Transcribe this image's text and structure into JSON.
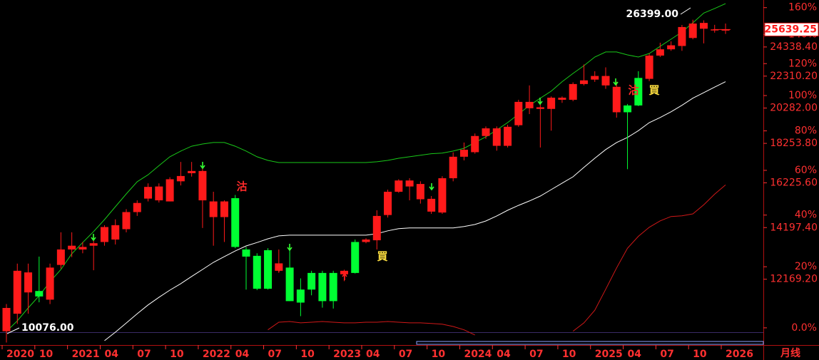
{
  "chart_data": {
    "type": "candlestick",
    "period_label": "月线",
    "categories": [
      "2020",
      null,
      null,
      "10",
      null,
      null,
      "2021",
      null,
      null,
      "04",
      null,
      null,
      "07",
      null,
      null,
      "10",
      null,
      null,
      "2022",
      null,
      null,
      "04",
      null,
      null,
      "07",
      null,
      null,
      "10",
      null,
      null,
      "2023",
      null,
      null,
      "04",
      null,
      null,
      "07",
      null,
      null,
      "10",
      null,
      null,
      "2024",
      null,
      null,
      "04",
      null,
      null,
      "07",
      null,
      null,
      "10",
      null,
      null,
      "2025",
      null,
      null,
      "04",
      null,
      null,
      "07",
      null,
      null,
      "10",
      null,
      null,
      "2026"
    ],
    "open": [
      10420,
      10980,
      11700,
      11750,
      11450,
      12700,
      13300,
      13300,
      13450,
      13600,
      13700,
      14130,
      14870,
      15480,
      15400,
      15350,
      16300,
      16700,
      15400,
      14650,
      14650,
      15500,
      13300,
      13050,
      13270,
      12480,
      12600,
      11800,
      12400,
      12400,
      12400,
      12350,
      13600,
      13600,
      13670,
      14740,
      15800,
      16050,
      15450,
      14890,
      14850,
      16450,
      17540,
      17780,
      18660,
      18120,
      18120,
      19270,
      20270,
      20230,
      20230,
      20790,
      20790,
      21790,
      22080,
      21700,
      20030,
      20440,
      22190,
      22130,
      23720,
      24170,
      24410,
      25000,
      25700,
      25600,
      25600
    ],
    "high": [
      11300,
      12750,
      12750,
      13020,
      12750,
      14000,
      14000,
      13600,
      13850,
      14300,
      14550,
      15000,
      15400,
      16200,
      16200,
      16500,
      17270,
      17270,
      17200,
      15800,
      15400,
      15650,
      13400,
      13150,
      13350,
      13300,
      13350,
      12200,
      12480,
      12480,
      12480,
      12520,
      13700,
      13750,
      14950,
      15900,
      16400,
      16450,
      16300,
      15600,
      16550,
      17770,
      18300,
      18800,
      19200,
      19200,
      19300,
      20790,
      21700,
      20790,
      21000,
      21000,
      21900,
      23100,
      22640,
      22900,
      21940,
      20530,
      22640,
      23860,
      24650,
      24750,
      25990,
      26399,
      26350,
      26000,
      26100
    ],
    "low": [
      10076,
      10650,
      10980,
      11360,
      11300,
      12560,
      13000,
      13150,
      12500,
      13450,
      13500,
      14000,
      14700,
      15350,
      15300,
      15350,
      16100,
      16530,
      14180,
      13450,
      13600,
      13350,
      11800,
      11780,
      11800,
      12400,
      11400,
      10900,
      11600,
      11180,
      11150,
      12100,
      12380,
      13550,
      13300,
      14630,
      15750,
      15400,
      15250,
      14790,
      14790,
      16300,
      17350,
      17700,
      18500,
      17860,
      18030,
      19180,
      19920,
      18030,
      18960,
      20600,
      20700,
      21700,
      21930,
      21480,
      19710,
      16900,
      20400,
      21980,
      23620,
      24060,
      24060,
      24900,
      24600,
      25400,
      25300
    ],
    "close": [
      11170,
      12480,
      12420,
      11560,
      12600,
      13300,
      13450,
      13400,
      13550,
      14220,
      14300,
      14870,
      15280,
      16030,
      16050,
      16400,
      16560,
      16810,
      16810,
      15350,
      15350,
      13400,
      13020,
      11830,
      11830,
      12760,
      11400,
      11350,
      11800,
      11400,
      11400,
      12480,
      12400,
      13700,
      14700,
      15800,
      16340,
      16340,
      16170,
      15470,
      16450,
      17540,
      17910,
      18660,
      19090,
      19090,
      19180,
      20660,
      20660,
      20330,
      20920,
      20920,
      21790,
      22030,
      22320,
      22320,
      21610,
      20030,
      20440,
      23720,
      24170,
      24460,
      25830,
      26100,
      26150,
      25650,
      25639.25
    ],
    "up_color": "#ff1a1a",
    "down_color": "#00ff33",
    "overlays": [
      {
        "color": "#19c819",
        "values": [
          10413,
          10750,
          11170,
          11580,
          12080,
          12530,
          13130,
          13580,
          14030,
          14540,
          15110,
          15700,
          16280,
          16620,
          17080,
          17540,
          17840,
          18100,
          18220,
          18300,
          18300,
          18100,
          17840,
          17540,
          17350,
          17240,
          17240,
          17240,
          17240,
          17240,
          17240,
          17240,
          17240,
          17240,
          17280,
          17350,
          17460,
          17540,
          17620,
          17700,
          17730,
          17840,
          17990,
          18300,
          18610,
          19000,
          19420,
          19920,
          20440,
          20890,
          21330,
          21940,
          22490,
          23020,
          23620,
          23980,
          23980,
          23770,
          23620,
          23870,
          24390,
          24910,
          25450,
          26160,
          26930,
          27300,
          27700
        ]
      },
      {
        "color": "#ffffff",
        "values": [
          null,
          null,
          null,
          null,
          null,
          null,
          null,
          null,
          null,
          10130,
          10390,
          10680,
          10980,
          11270,
          11530,
          11780,
          12010,
          12270,
          12530,
          12800,
          13020,
          13240,
          13440,
          13580,
          13730,
          13850,
          13880,
          13880,
          13880,
          13880,
          13880,
          13880,
          13880,
          13880,
          13940,
          14060,
          14150,
          14180,
          14180,
          14180,
          14180,
          14180,
          14240,
          14330,
          14480,
          14700,
          14950,
          15170,
          15370,
          15600,
          15900,
          16210,
          16520,
          16990,
          17460,
          17920,
          18300,
          18580,
          18960,
          19420,
          19720,
          20060,
          20450,
          20890,
          21240,
          21590,
          21940
        ]
      },
      {
        "color": "#d01818",
        "axis": "y2",
        "values": [
          null,
          null,
          null,
          null,
          null,
          null,
          null,
          null,
          null,
          null,
          null,
          null,
          null,
          null,
          null,
          null,
          null,
          null,
          null,
          null,
          null,
          null,
          null,
          null,
          -0.6,
          1.7,
          1.9,
          1.5,
          1.7,
          1.9,
          1.7,
          1.5,
          1.5,
          1.7,
          1.7,
          1.9,
          1.7,
          1.5,
          1.5,
          1.3,
          1.1,
          0.4,
          -0.6,
          -2.1,
          null,
          null,
          null,
          null,
          null,
          null,
          null,
          null,
          -1.0,
          1.5,
          5.4,
          12.2,
          19.6,
          26.8,
          31.4,
          35.0,
          37.6,
          39.4,
          39.7,
          40.5,
          44.4,
          49.0,
          53.2
        ]
      }
    ],
    "log_y": true,
    "ylim": [
      10000,
      28000
    ],
    "yticks": [
      {
        "value": 12169.2,
        "label": "12169.20"
      },
      {
        "value": 14197.4,
        "label": "14197.40"
      },
      {
        "value": 16225.6,
        "label": "16225.60"
      },
      {
        "value": 18253.8,
        "label": "18253.80"
      },
      {
        "value": 20282,
        "label": "20282.00"
      },
      {
        "value": 22310.2,
        "label": "22310.20"
      },
      {
        "value": 24338.4,
        "label": "24338.40"
      }
    ],
    "y2_scale": "log-percent",
    "y2lim": [
      -5,
      166
    ],
    "y2ticks": [
      {
        "value": 0,
        "label": "0.0%"
      },
      {
        "value": 20,
        "label": "20%"
      },
      {
        "value": 40,
        "label": "40%"
      },
      {
        "value": 60,
        "label": "60%"
      },
      {
        "value": 80,
        "label": "80%"
      },
      {
        "value": 100,
        "label": "100%"
      },
      {
        "value": 120,
        "label": "120%"
      },
      {
        "value": 140,
        "label": "140%"
      },
      {
        "value": 160,
        "label": "160%"
      }
    ],
    "tick_color": "#ff3030",
    "last_price": {
      "value": 25639.25,
      "label": "25639.25"
    },
    "high_label": "26399.00",
    "low_label": "10076.00",
    "annotations": [
      {
        "text": "沽",
        "color": "#ff2a2a"
      },
      {
        "text": "買",
        "color": "#ffe040"
      },
      {
        "text": "沽",
        "color": "#ff2a2a"
      },
      {
        "text": "買",
        "color": "#ffe040"
      }
    ]
  }
}
